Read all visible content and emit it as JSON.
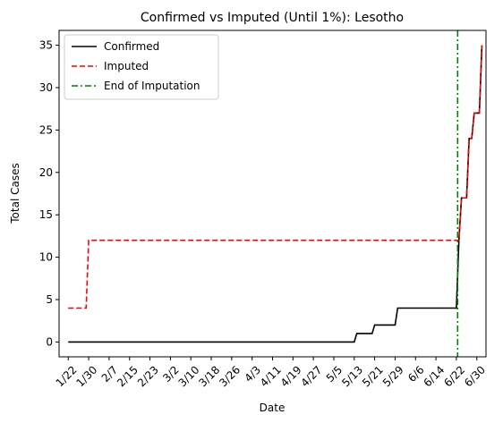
{
  "chart_data": {
    "type": "line",
    "title": "Confirmed vs Imputed (Until 1%): Lesotho",
    "xlabel": "Date",
    "ylabel": "Total Cases",
    "x_tick_labels": [
      "1/22",
      "1/30",
      "2/7",
      "2/15",
      "2/23",
      "3/2",
      "3/10",
      "3/18",
      "3/26",
      "4/3",
      "4/11",
      "4/19",
      "4/27",
      "5/5",
      "5/13",
      "5/21",
      "5/29",
      "6/6",
      "6/14",
      "6/22",
      "6/30"
    ],
    "y_ticks": [
      0,
      5,
      10,
      15,
      20,
      25,
      30,
      35
    ],
    "x_range_days": [
      -3.6,
      163.6
    ],
    "ylim": [
      -1.75,
      36.75
    ],
    "legend_position": "upper-left",
    "series": [
      {
        "name": "Confirmed",
        "color": "#000000",
        "style": "solid",
        "points": [
          [
            0,
            0
          ],
          [
            112,
            0
          ],
          [
            113,
            1
          ],
          [
            119,
            1
          ],
          [
            120,
            2
          ],
          [
            128,
            2
          ],
          [
            129,
            4
          ],
          [
            152,
            4
          ],
          [
            153,
            12
          ],
          [
            154,
            17
          ],
          [
            156,
            17
          ],
          [
            157,
            24
          ],
          [
            158,
            24
          ],
          [
            159,
            27
          ],
          [
            161,
            27
          ],
          [
            162,
            35
          ]
        ]
      },
      {
        "name": "Imputed",
        "color": "#ff0000",
        "style": "dashed",
        "points": [
          [
            0,
            4
          ],
          [
            7,
            4
          ],
          [
            8,
            12
          ],
          [
            152,
            12
          ],
          [
            153,
            12
          ],
          [
            154,
            17
          ],
          [
            156,
            17
          ],
          [
            157,
            24
          ],
          [
            158,
            24
          ],
          [
            159,
            27
          ],
          [
            161,
            27
          ],
          [
            162,
            35
          ]
        ]
      }
    ],
    "vlines": [
      {
        "name": "End of Imputation",
        "x": 152.5,
        "color": "#008000",
        "style": "dashdot"
      }
    ]
  }
}
